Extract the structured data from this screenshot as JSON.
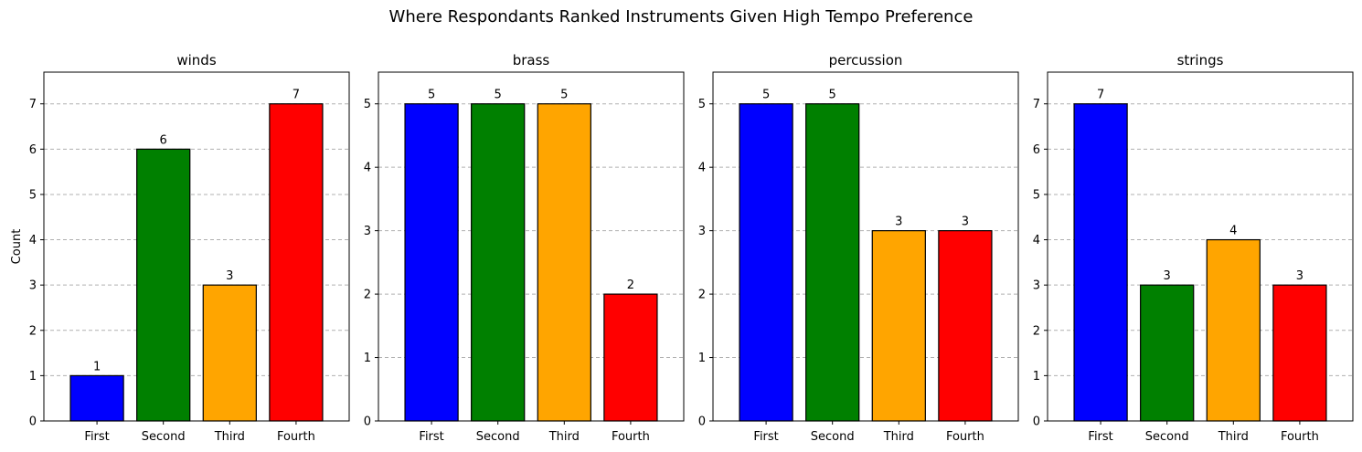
{
  "figure": {
    "title": "Where Respondants Ranked Instruments Given High Tempo Preference"
  },
  "colors": {
    "First": "#0000ff",
    "Second": "#008000",
    "Third": "#ffa500",
    "Fourth": "#ff0000"
  },
  "chart_data": [
    {
      "type": "bar",
      "title": "winds",
      "xlabel": "",
      "ylabel": "Count",
      "categories": [
        "First",
        "Second",
        "Third",
        "Fourth"
      ],
      "values": [
        1,
        6,
        3,
        7
      ],
      "ylim": [
        0,
        7.7
      ],
      "yticks": [
        0,
        1,
        2,
        3,
        4,
        5,
        6,
        7
      ],
      "grid": "y-dashed"
    },
    {
      "type": "bar",
      "title": "brass",
      "xlabel": "",
      "ylabel": "",
      "categories": [
        "First",
        "Second",
        "Third",
        "Fourth"
      ],
      "values": [
        5,
        5,
        5,
        2
      ],
      "ylim": [
        0,
        5.5
      ],
      "yticks": [
        0,
        1,
        2,
        3,
        4,
        5
      ],
      "grid": "y-dashed"
    },
    {
      "type": "bar",
      "title": "percussion",
      "xlabel": "",
      "ylabel": "",
      "categories": [
        "First",
        "Second",
        "Third",
        "Fourth"
      ],
      "values": [
        5,
        5,
        3,
        3
      ],
      "ylim": [
        0,
        5.5
      ],
      "yticks": [
        0,
        1,
        2,
        3,
        4,
        5
      ],
      "grid": "y-dashed"
    },
    {
      "type": "bar",
      "title": "strings",
      "xlabel": "",
      "ylabel": "",
      "categories": [
        "First",
        "Second",
        "Third",
        "Fourth"
      ],
      "values": [
        7,
        3,
        4,
        3
      ],
      "ylim": [
        0,
        7.7
      ],
      "yticks": [
        0,
        1,
        2,
        3,
        4,
        5,
        6,
        7
      ],
      "grid": "y-dashed"
    }
  ]
}
